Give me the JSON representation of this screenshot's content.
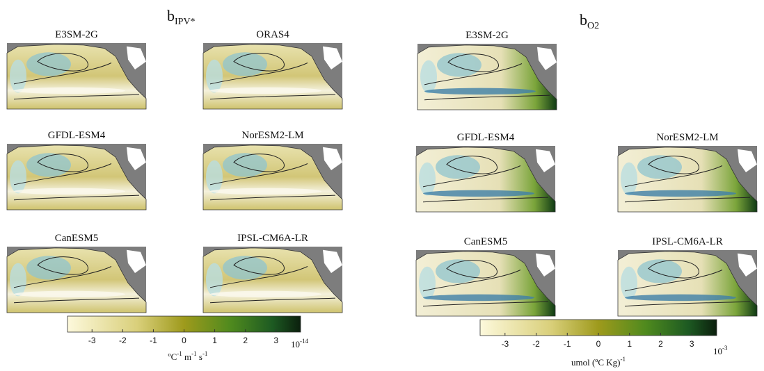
{
  "left": {
    "title": {
      "main": "b",
      "sub": "IPV*"
    },
    "panels": [
      "E3SM-2G",
      "ORAS4",
      "GFDL-ESM4",
      "NorESM2-LM",
      "CanESM5",
      "IPSL-CM6A-LR"
    ],
    "colorbar": {
      "ticks": [
        "-3",
        "-2",
        "-1",
        "0",
        "1",
        "2",
        "3"
      ],
      "exponent": {
        "base": "10",
        "sup": "-14"
      },
      "units": [
        {
          "base": "ºC",
          "sup": "-1"
        },
        {
          "base": " m",
          "sup": "-1"
        },
        {
          "base": " s",
          "sup": "-1"
        }
      ]
    }
  },
  "right": {
    "title": {
      "main": "b",
      "sub": "O2"
    },
    "panels": [
      "E3SM-2G",
      "GFDL-ESM4",
      "NorESM2-LM",
      "CanESM5",
      "IPSL-CM6A-LR"
    ],
    "colorbar": {
      "ticks": [
        "-3",
        "-2",
        "-1",
        "0",
        "1",
        "2",
        "3"
      ],
      "exponent": {
        "base": "10",
        "sup": "-3"
      },
      "units": [
        {
          "base": "umol (ºC Kg)",
          "sup": "-1"
        }
      ]
    }
  }
}
